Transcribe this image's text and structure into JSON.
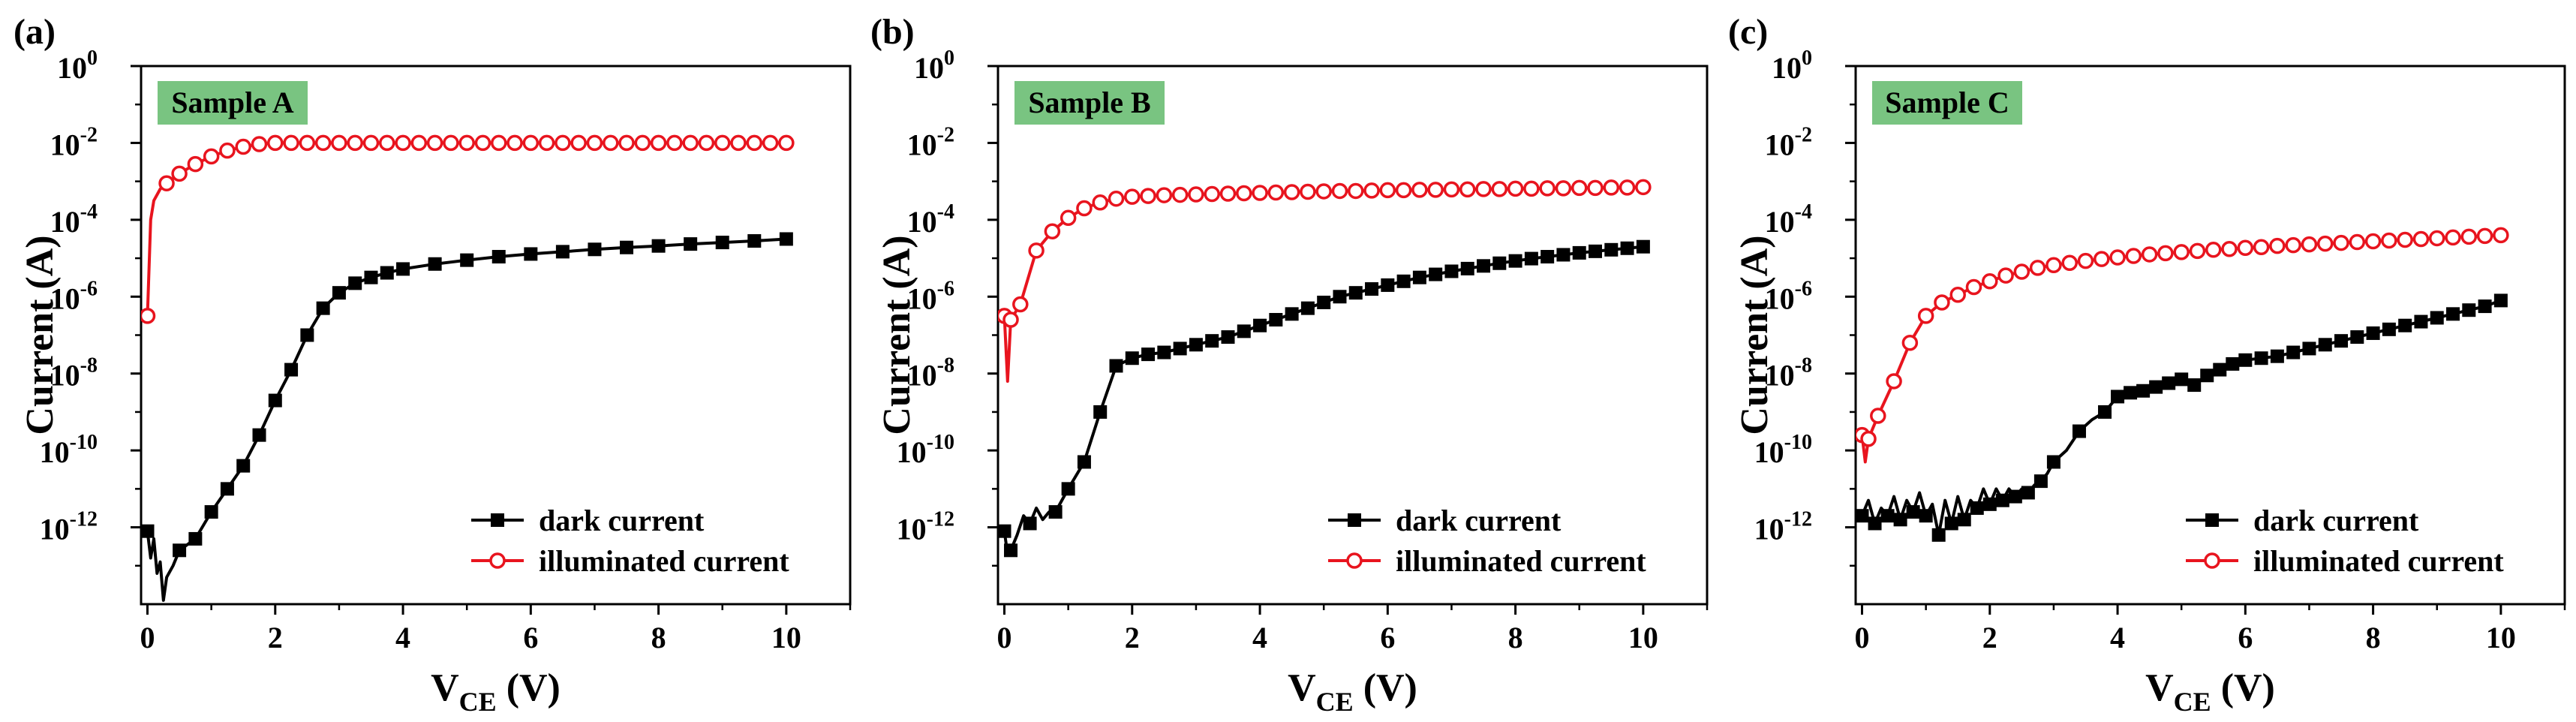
{
  "chart_data": [
    {
      "type": "line",
      "panel_label": "(a)",
      "sample_label": "Sample A",
      "xlabel_main": "V",
      "xlabel_sub": "CE",
      "xlabel_unit": " (V)",
      "ylabel": "Current (A)",
      "x_ticks": [
        "0",
        "2",
        "4",
        "6",
        "8",
        "10"
      ],
      "y_ticks": [
        {
          "base": "10",
          "exp": "0"
        },
        {
          "base": "10",
          "exp": "-2"
        },
        {
          "base": "10",
          "exp": "-4"
        },
        {
          "base": "10",
          "exp": "-6"
        },
        {
          "base": "10",
          "exp": "-8"
        },
        {
          "base": "10",
          "exp": "-10"
        },
        {
          "base": "10",
          "exp": "-12"
        }
      ],
      "xlim": [
        -0.1,
        11
      ],
      "ylim_log10": [
        -14,
        0
      ],
      "legend": [
        "dark current",
        "illuminated current"
      ],
      "series": [
        {
          "name": "dark current",
          "color": "#000000",
          "marker": "square",
          "x": [
            0,
            0.05,
            0.1,
            0.15,
            0.2,
            0.25,
            0.3,
            0.4,
            0.5,
            0.75,
            1.0,
            1.25,
            1.5,
            1.75,
            2.0,
            2.25,
            2.5,
            2.75,
            3.0,
            3.25,
            3.5,
            3.75,
            4.0,
            4.5,
            5.0,
            5.5,
            6.0,
            6.5,
            7.0,
            7.5,
            8.0,
            8.5,
            9.0,
            9.5,
            10.0
          ],
          "log10": [
            -12.1,
            -12.8,
            -12.3,
            -13.2,
            -12.9,
            -13.9,
            -13.3,
            -13.0,
            -12.6,
            -12.3,
            -11.6,
            -11.0,
            -10.4,
            -9.6,
            -8.7,
            -7.9,
            -7.0,
            -6.3,
            -5.9,
            -5.65,
            -5.5,
            -5.38,
            -5.28,
            -5.15,
            -5.05,
            -4.96,
            -4.89,
            -4.83,
            -4.77,
            -4.72,
            -4.68,
            -4.63,
            -4.59,
            -4.55,
            -4.5
          ],
          "marker_every": [
            0,
            8,
            9,
            10,
            11,
            12,
            13,
            14,
            15,
            16,
            17,
            18,
            19,
            20,
            21,
            22,
            23,
            24,
            25,
            26,
            27,
            28,
            29,
            30,
            31,
            32,
            33,
            34
          ]
        },
        {
          "name": "illuminated current",
          "color": "#e8141e",
          "marker": "circle",
          "x": [
            0,
            0.05,
            0.1,
            0.2,
            0.3,
            0.5,
            0.75,
            1.0,
            1.25,
            1.5,
            1.75,
            2.0,
            2.25,
            2.5,
            2.75,
            3.0,
            3.25,
            3.5,
            3.75,
            4.0,
            4.25,
            4.5,
            4.75,
            5.0,
            5.25,
            5.5,
            5.75,
            6.0,
            6.25,
            6.5,
            6.75,
            7.0,
            7.25,
            7.5,
            7.75,
            8.0,
            8.25,
            8.5,
            8.75,
            9.0,
            9.25,
            9.5,
            9.75,
            10.0
          ],
          "log10": [
            -6.5,
            -4.0,
            -3.5,
            -3.2,
            -3.05,
            -2.8,
            -2.55,
            -2.35,
            -2.2,
            -2.1,
            -2.03,
            -2.0,
            -2.0,
            -2.0,
            -2.0,
            -2.0,
            -2.0,
            -2.0,
            -2.0,
            -2.0,
            -2.0,
            -2.0,
            -2.0,
            -2.0,
            -2.0,
            -2.0,
            -2.0,
            -2.0,
            -2.0,
            -2.0,
            -2.0,
            -2.0,
            -2.0,
            -2.0,
            -2.0,
            -2.0,
            -2.0,
            -2.0,
            -2.0,
            -2.0,
            -2.0,
            -2.0,
            -2.0,
            -2.0
          ],
          "marker_every": [
            0,
            4,
            5,
            6,
            7,
            8,
            9,
            10,
            11,
            12,
            13,
            14,
            15,
            16,
            17,
            18,
            19,
            20,
            21,
            22,
            23,
            24,
            25,
            26,
            27,
            28,
            29,
            30,
            31,
            32,
            33,
            34,
            35,
            36,
            37,
            38,
            39,
            40,
            41,
            42,
            43
          ]
        }
      ]
    },
    {
      "type": "line",
      "panel_label": "(b)",
      "sample_label": "Sample B",
      "xlabel_main": "V",
      "xlabel_sub": "CE",
      "xlabel_unit": " (V)",
      "ylabel": "Current (A)",
      "x_ticks": [
        "0",
        "2",
        "4",
        "6",
        "8",
        "10"
      ],
      "y_ticks": [
        {
          "base": "10",
          "exp": "0"
        },
        {
          "base": "10",
          "exp": "-2"
        },
        {
          "base": "10",
          "exp": "-4"
        },
        {
          "base": "10",
          "exp": "-6"
        },
        {
          "base": "10",
          "exp": "-8"
        },
        {
          "base": "10",
          "exp": "-10"
        },
        {
          "base": "10",
          "exp": "-12"
        }
      ],
      "xlim": [
        -0.1,
        11
      ],
      "ylim_log10": [
        -14,
        0
      ],
      "legend": [
        "dark current",
        "illuminated current"
      ],
      "series": [
        {
          "name": "dark current",
          "color": "#000000",
          "marker": "square",
          "x": [
            0,
            0.05,
            0.1,
            0.2,
            0.3,
            0.4,
            0.5,
            0.6,
            0.7,
            0.8,
            1.0,
            1.25,
            1.5,
            1.75,
            2.0,
            2.25,
            2.5,
            2.75,
            3.0,
            3.25,
            3.5,
            3.75,
            4.0,
            4.25,
            4.5,
            4.75,
            5.0,
            5.25,
            5.5,
            5.75,
            6.0,
            6.25,
            6.5,
            6.75,
            7.0,
            7.25,
            7.5,
            7.75,
            8.0,
            8.25,
            8.5,
            8.75,
            9.0,
            9.25,
            9.5,
            9.75,
            10.0
          ],
          "log10": [
            -12.1,
            -12.7,
            -12.6,
            -12.2,
            -11.7,
            -11.9,
            -11.5,
            -11.8,
            -11.6,
            -11.6,
            -11.0,
            -10.3,
            -9.0,
            -7.8,
            -7.6,
            -7.5,
            -7.45,
            -7.35,
            -7.25,
            -7.15,
            -7.05,
            -6.9,
            -6.75,
            -6.6,
            -6.45,
            -6.3,
            -6.15,
            -6.0,
            -5.9,
            -5.8,
            -5.7,
            -5.6,
            -5.5,
            -5.42,
            -5.34,
            -5.27,
            -5.2,
            -5.13,
            -5.07,
            -5.01,
            -4.96,
            -4.91,
            -4.86,
            -4.82,
            -4.78,
            -4.74,
            -4.7
          ],
          "marker_every": [
            0,
            2,
            5,
            9,
            10,
            11,
            12,
            13,
            14,
            15,
            16,
            17,
            18,
            19,
            20,
            21,
            22,
            23,
            24,
            25,
            26,
            27,
            28,
            29,
            30,
            31,
            32,
            33,
            34,
            35,
            36,
            37,
            38,
            39,
            40,
            41,
            42,
            43,
            44,
            45,
            46
          ]
        },
        {
          "name": "illuminated current",
          "color": "#e8141e",
          "marker": "circle",
          "x": [
            0,
            0.05,
            0.1,
            0.25,
            0.5,
            0.75,
            1.0,
            1.25,
            1.5,
            1.75,
            2.0,
            2.25,
            2.5,
            2.75,
            3.0,
            3.25,
            3.5,
            3.75,
            4.0,
            4.25,
            4.5,
            4.75,
            5.0,
            5.25,
            5.5,
            5.75,
            6.0,
            6.25,
            6.5,
            6.75,
            7.0,
            7.25,
            7.5,
            7.75,
            8.0,
            8.25,
            8.5,
            8.75,
            9.0,
            9.25,
            9.5,
            9.75,
            10.0
          ],
          "log10": [
            -6.5,
            -8.2,
            -6.6,
            -6.2,
            -4.8,
            -4.3,
            -3.95,
            -3.7,
            -3.55,
            -3.45,
            -3.4,
            -3.38,
            -3.36,
            -3.35,
            -3.34,
            -3.33,
            -3.32,
            -3.31,
            -3.3,
            -3.29,
            -3.28,
            -3.27,
            -3.26,
            -3.25,
            -3.25,
            -3.24,
            -3.23,
            -3.23,
            -3.22,
            -3.22,
            -3.21,
            -3.21,
            -3.2,
            -3.2,
            -3.19,
            -3.19,
            -3.18,
            -3.18,
            -3.17,
            -3.17,
            -3.16,
            -3.16,
            -3.15
          ],
          "marker_every": [
            0,
            2,
            3,
            4,
            5,
            6,
            7,
            8,
            9,
            10,
            11,
            12,
            13,
            14,
            15,
            16,
            17,
            18,
            19,
            20,
            21,
            22,
            23,
            24,
            25,
            26,
            27,
            28,
            29,
            30,
            31,
            32,
            33,
            34,
            35,
            36,
            37,
            38,
            39,
            40,
            41,
            42
          ]
        }
      ]
    },
    {
      "type": "line",
      "panel_label": "(c)",
      "sample_label": "Sample C",
      "xlabel_main": "V",
      "xlabel_sub": "CE",
      "xlabel_unit": " (V)",
      "ylabel": "Current (A)",
      "x_ticks": [
        "0",
        "2",
        "4",
        "6",
        "8",
        "10"
      ],
      "y_ticks": [
        {
          "base": "10",
          "exp": "0"
        },
        {
          "base": "10",
          "exp": "-2"
        },
        {
          "base": "10",
          "exp": "-4"
        },
        {
          "base": "10",
          "exp": "-6"
        },
        {
          "base": "10",
          "exp": "-8"
        },
        {
          "base": "10",
          "exp": "-10"
        },
        {
          "base": "10",
          "exp": "-12"
        }
      ],
      "xlim": [
        -0.1,
        11
      ],
      "ylim_log10": [
        -14,
        0
      ],
      "legend": [
        "dark current",
        "illuminated current"
      ],
      "series": [
        {
          "name": "dark current",
          "color": "#000000",
          "marker": "square",
          "x": [
            0,
            0.1,
            0.2,
            0.3,
            0.4,
            0.5,
            0.6,
            0.7,
            0.8,
            0.9,
            1.0,
            1.1,
            1.2,
            1.3,
            1.4,
            1.5,
            1.6,
            1.7,
            1.8,
            1.9,
            2.0,
            2.1,
            2.2,
            2.3,
            2.4,
            2.5,
            2.6,
            2.7,
            2.8,
            2.9,
            3.0,
            3.2,
            3.4,
            3.6,
            3.8,
            4.0,
            4.2,
            4.4,
            4.6,
            4.8,
            5.0,
            5.2,
            5.4,
            5.6,
            5.8,
            6.0,
            6.25,
            6.5,
            6.75,
            7.0,
            7.25,
            7.5,
            7.75,
            8.0,
            8.25,
            8.5,
            8.75,
            9.0,
            9.25,
            9.5,
            9.75,
            10.0
          ],
          "log10": [
            -11.7,
            -11.3,
            -11.9,
            -11.5,
            -11.7,
            -11.2,
            -11.8,
            -11.3,
            -11.6,
            -11.1,
            -11.7,
            -11.4,
            -12.2,
            -11.3,
            -11.9,
            -11.2,
            -11.8,
            -11.3,
            -11.5,
            -11.0,
            -11.4,
            -11.0,
            -11.3,
            -11.0,
            -11.2,
            -11.0,
            -11.1,
            -10.9,
            -10.8,
            -10.6,
            -10.3,
            -10.0,
            -9.5,
            -9.2,
            -9.0,
            -8.6,
            -8.5,
            -8.45,
            -8.35,
            -8.25,
            -8.15,
            -8.3,
            -8.05,
            -7.9,
            -7.75,
            -7.65,
            -7.6,
            -7.55,
            -7.45,
            -7.35,
            -7.25,
            -7.15,
            -7.05,
            -6.95,
            -6.85,
            -6.75,
            -6.65,
            -6.55,
            -6.45,
            -6.35,
            -6.25,
            -6.1
          ],
          "marker_every": [
            0,
            2,
            4,
            6,
            8,
            10,
            12,
            14,
            16,
            18,
            20,
            22,
            24,
            26,
            28,
            30,
            32,
            34,
            35,
            36,
            37,
            38,
            39,
            40,
            41,
            42,
            43,
            44,
            45,
            46,
            47,
            48,
            49,
            50,
            51,
            52,
            53,
            54,
            55,
            56,
            57,
            58,
            59,
            60,
            61
          ]
        },
        {
          "name": "illuminated current",
          "color": "#e8141e",
          "marker": "circle",
          "x": [
            0,
            0.05,
            0.1,
            0.25,
            0.5,
            0.75,
            1.0,
            1.25,
            1.5,
            1.75,
            2.0,
            2.25,
            2.5,
            2.75,
            3.0,
            3.25,
            3.5,
            3.75,
            4.0,
            4.25,
            4.5,
            4.75,
            5.0,
            5.25,
            5.5,
            5.75,
            6.0,
            6.25,
            6.5,
            6.75,
            7.0,
            7.25,
            7.5,
            7.75,
            8.0,
            8.25,
            8.5,
            8.75,
            9.0,
            9.25,
            9.5,
            9.75,
            10.0
          ],
          "log10": [
            -9.6,
            -10.3,
            -9.7,
            -9.1,
            -8.2,
            -7.2,
            -6.5,
            -6.15,
            -5.95,
            -5.75,
            -5.6,
            -5.45,
            -5.35,
            -5.25,
            -5.18,
            -5.12,
            -5.07,
            -5.02,
            -4.98,
            -4.94,
            -4.9,
            -4.87,
            -4.84,
            -4.81,
            -4.78,
            -4.76,
            -4.73,
            -4.71,
            -4.68,
            -4.66,
            -4.64,
            -4.62,
            -4.6,
            -4.58,
            -4.56,
            -4.54,
            -4.52,
            -4.5,
            -4.48,
            -4.46,
            -4.44,
            -4.42,
            -4.4
          ],
          "marker_every": [
            0,
            2,
            3,
            4,
            5,
            6,
            7,
            8,
            9,
            10,
            11,
            12,
            13,
            14,
            15,
            16,
            17,
            18,
            19,
            20,
            21,
            22,
            23,
            24,
            25,
            26,
            27,
            28,
            29,
            30,
            31,
            32,
            33,
            34,
            35,
            36,
            37,
            38,
            39,
            40,
            41,
            42
          ]
        }
      ]
    }
  ],
  "colors": {
    "sample_box": "#79c481",
    "dark": "#000000",
    "illuminated": "#e8141e"
  }
}
